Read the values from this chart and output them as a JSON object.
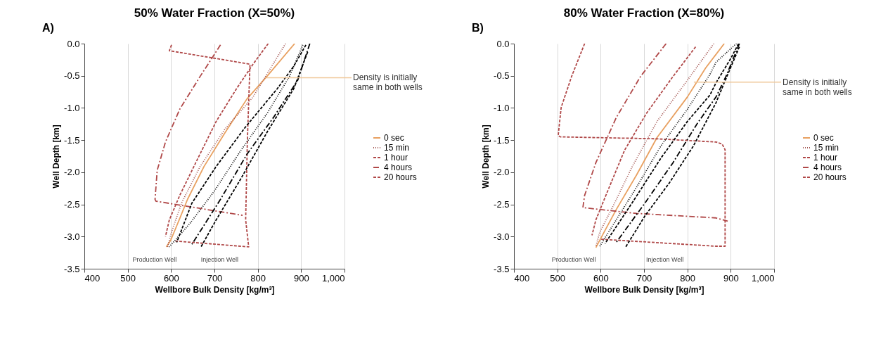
{
  "chart_data": [
    {
      "type": "line",
      "title": "50% Water Fraction (X=50%)",
      "xlabel": "Wellbore Bulk Density [kg/m³]",
      "ylabel": "Well Depth [km]",
      "xlim": [
        400,
        1000
      ],
      "ylim": [
        -3.5,
        0
      ],
      "xticks": [
        400,
        500,
        600,
        700,
        800,
        900,
        {
          "value": 1000,
          "label": "1,000"
        }
      ],
      "yticks": [
        {
          "value": -3.5,
          "label": "-3.5"
        },
        {
          "value": -3.0,
          "label": "-3.0"
        },
        {
          "value": -2.5,
          "label": "-2.5"
        },
        {
          "value": -2.0,
          "label": "-2.0"
        },
        {
          "value": -1.5,
          "label": "-1.5"
        },
        {
          "value": -1.0,
          "label": "-1.0"
        },
        {
          "value": -0.5,
          "label": "-0.5"
        },
        {
          "value": 0,
          "label": "0.0"
        }
      ],
      "grid": "x",
      "legend": "right",
      "annotations": [
        "A)",
        {
          "text": "Density is initially\nsame in both wells",
          "x": 820,
          "y": -0.53
        },
        "Production Well",
        "Injection Well"
      ],
      "series": [
        {
          "name": "0 sec",
          "color": "#e8a060",
          "line_style": "solid",
          "x": [
            885,
            821,
            775,
            723,
            676,
            638,
            615,
            599,
            589
          ],
          "values": [
            0,
            -0.51,
            -0.86,
            -1.4,
            -1.91,
            -2.42,
            -2.8,
            -3.06,
            -3.16
          ]
        },
        {
          "name": "15 min",
          "color": "#a0504c",
          "line_style": "dotted",
          "x": [
            864,
            789,
            723,
            667,
            624,
            601,
            592
          ],
          "values": [
            0,
            -0.83,
            -1.34,
            -1.91,
            -2.48,
            -2.93,
            -3.16
          ]
        },
        {
          "name": "1 hour",
          "color": "#b04848",
          "line_style": "dashed",
          "x": [
            824,
            789,
            751,
            704,
            657,
            620,
            596,
            587
          ],
          "values": [
            0,
            -0.32,
            -0.7,
            -1.21,
            -1.85,
            -2.36,
            -2.74,
            -3.0
          ]
        },
        {
          "name": "4 hours",
          "color": "#b04848",
          "line_style": "dashdot",
          "x": [
            714,
            667,
            620,
            587,
            568,
            563,
            565,
            765
          ],
          "values": [
            -0.02,
            -0.51,
            -1.02,
            -1.53,
            -1.97,
            -2.42,
            -2.45,
            -2.67
          ]
        },
        {
          "name": "20 hours",
          "color": "#b04848",
          "line_style": "dashed",
          "x": [
            601,
            596,
            782,
            776,
            772,
            779,
            610
          ],
          "values": [
            -0.02,
            -0.11,
            -0.32,
            -1.5,
            -2.74,
            -3.16,
            -3.07
          ]
        },
        {
          "color": "#000000",
          "line_style": "dotted",
          "x": [
            904,
            873,
            822,
            761,
            700,
            643,
            596
          ],
          "values": [
            -0.02,
            -0.51,
            -1.08,
            -1.66,
            -2.29,
            -2.8,
            -3.16
          ]
        },
        {
          "color": "#000000",
          "line_style": "dashed",
          "x": [
            911,
            883,
            845,
            770,
            704,
            648,
            613
          ],
          "values": [
            -0.02,
            -0.35,
            -0.7,
            -1.31,
            -1.91,
            -2.48,
            -3.09
          ]
        },
        {
          "color": "#000000",
          "line_style": "dashdot",
          "x": [
            920,
            892,
            836,
            775,
            714,
            648
          ],
          "values": [
            0,
            -0.57,
            -1.15,
            -1.72,
            -2.42,
            -3.12
          ]
        },
        {
          "color": "#000000",
          "line_style": "dashed",
          "x": [
            915,
            883,
            822,
            761,
            704,
            669
          ],
          "values": [
            -0.13,
            -0.7,
            -1.37,
            -2.1,
            -2.74,
            -3.16
          ]
        }
      ]
    },
    {
      "type": "line",
      "title": "80% Water Fraction (X=80%)",
      "xlabel": "Wellbore Bulk Density [kg/m³]",
      "ylabel": "Well Depth [km]",
      "xlim": [
        400,
        1000
      ],
      "ylim": [
        -3.5,
        0
      ],
      "xticks": [
        400,
        500,
        600,
        700,
        800,
        900,
        {
          "value": 1000,
          "label": "1,000"
        }
      ],
      "yticks": [
        {
          "value": -3.5,
          "label": "-3.5"
        },
        {
          "value": -3.0,
          "label": "-3.0"
        },
        {
          "value": -2.5,
          "label": "-2.5"
        },
        {
          "value": -2.0,
          "label": "-2.0"
        },
        {
          "value": -1.5,
          "label": "-1.5"
        },
        {
          "value": -1.0,
          "label": "-1.0"
        },
        {
          "value": -0.5,
          "label": "-0.5"
        },
        {
          "value": 0,
          "label": "0.0"
        }
      ],
      "grid": "x",
      "legend": "right",
      "annotations": [
        "B)",
        {
          "text": "Density is initially\nsame in both wells",
          "x": 815,
          "y": -0.6
        },
        "Production Well",
        "Injection Well"
      ],
      "series": [
        {
          "name": "0 sec",
          "color": "#e8a060",
          "line_style": "solid",
          "x": [
            885,
            842,
            800,
            730,
            683,
            636,
            608,
            589
          ],
          "values": [
            0,
            -0.38,
            -0.83,
            -1.46,
            -2.04,
            -2.58,
            -2.93,
            -3.17
          ]
        },
        {
          "name": "15 min",
          "color": "#a0504c",
          "line_style": "dotted",
          "x": [
            861,
            800,
            730,
            673,
            627,
            598,
            589
          ],
          "values": [
            0,
            -0.57,
            -1.21,
            -1.91,
            -2.55,
            -2.93,
            -3.15
          ]
        },
        {
          "name": "1 hour",
          "color": "#b04848",
          "line_style": "dashed",
          "x": [
            819,
            767,
            706,
            655,
            612,
            589,
            580
          ],
          "values": [
            -0.05,
            -0.51,
            -1.08,
            -1.66,
            -2.36,
            -2.74,
            -2.98
          ]
        },
        {
          "name": "4 hours",
          "color": "#b04848",
          "line_style": "dashdot",
          "x": [
            751,
            692,
            636,
            589,
            563,
            559,
            683,
            866,
            893
          ],
          "values": [
            0,
            -0.51,
            -1.15,
            -1.85,
            -2.36,
            -2.55,
            -2.64,
            -2.71,
            -2.76
          ]
        },
        {
          "name": "20 hours",
          "color": "#b04848",
          "line_style": "dashed",
          "x": [
            563,
            533,
            509,
            502,
            507,
            730,
            866,
            880,
            887,
            887,
            866,
            598
          ],
          "values": [
            0,
            -0.51,
            -0.99,
            -1.43,
            -1.45,
            -1.48,
            -1.53,
            -1.56,
            -1.65,
            -3.15,
            -3.15,
            -3.04
          ]
        },
        {
          "color": "#000000",
          "line_style": "dotted",
          "x": [
            913,
            866,
            852,
            800,
            739,
            683,
            636,
            598
          ],
          "values": [
            0,
            -0.29,
            -0.48,
            -1.02,
            -1.59,
            -2.23,
            -2.74,
            -3.15
          ]
        },
        {
          "color": "#000000",
          "line_style": "dashed",
          "x": [
            918,
            901,
            866,
            852,
            800,
            739,
            678,
            610
          ],
          "values": [
            0,
            -0.22,
            -0.61,
            -0.8,
            -1.21,
            -1.78,
            -2.42,
            -3.11
          ]
        },
        {
          "color": "#000000",
          "line_style": "dashdot",
          "x": [
            920,
            889,
            866,
            823,
            767,
            702,
            636
          ],
          "values": [
            0,
            -0.51,
            -0.83,
            -1.24,
            -1.85,
            -2.48,
            -3.09
          ]
        },
        {
          "color": "#000000",
          "line_style": "dashed",
          "x": [
            920,
            885,
            866,
            814,
            758,
            702,
            657
          ],
          "values": [
            -0.05,
            -0.61,
            -0.92,
            -1.59,
            -2.17,
            -2.68,
            -3.17
          ]
        }
      ]
    }
  ]
}
